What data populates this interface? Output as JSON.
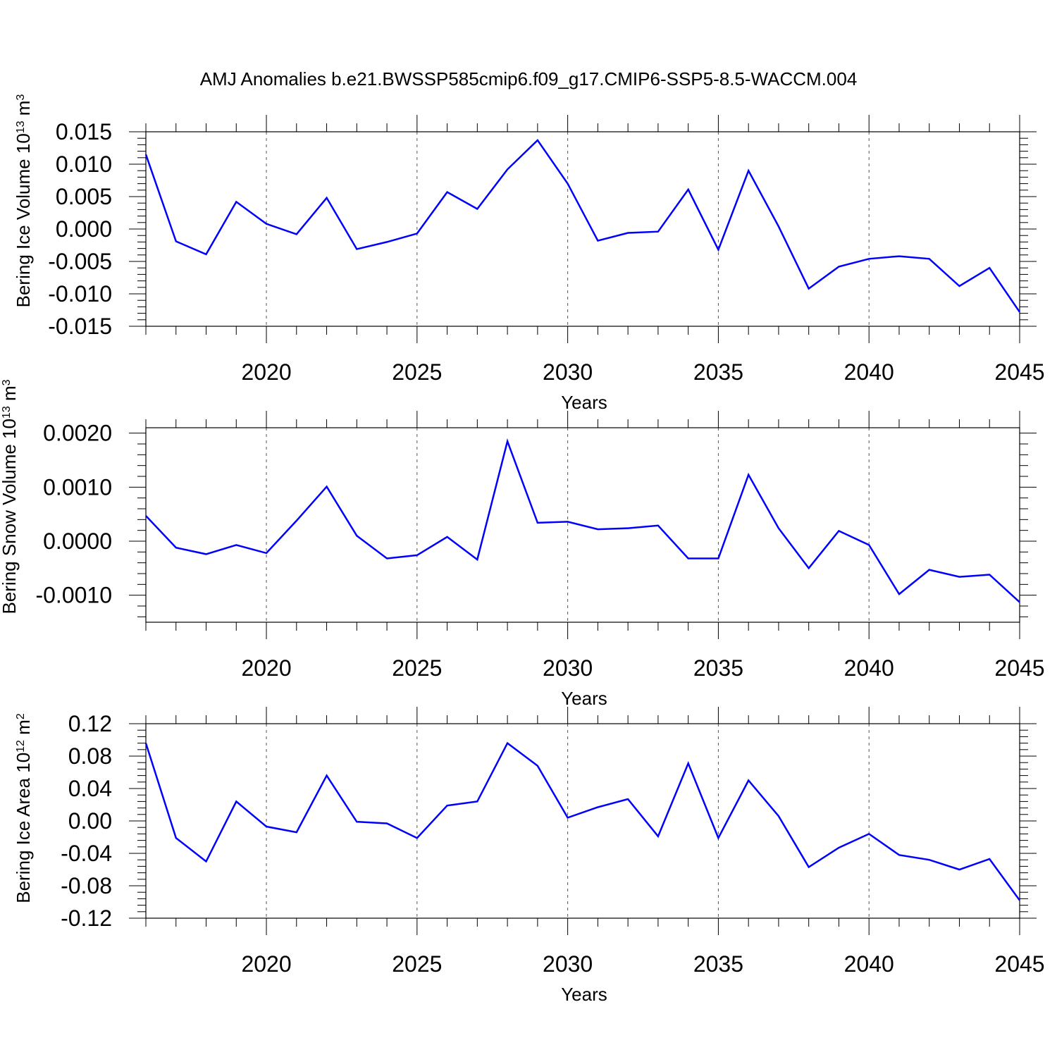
{
  "title": "AMJ Anomalies b.e21.BWSSP585cmip6.f09_g17.CMIP6-SSP5-8.5-WACCM.004",
  "colors": {
    "line": "#0000ff",
    "axis": "#000000",
    "grid": "#555555"
  },
  "chart_data": [
    {
      "type": "line",
      "xlabel": "Years",
      "ylabel": "Bering Ice Volume 10",
      "ylabel_exp": "13",
      "ylabel_unit": " m",
      "ylabel_unit_exp": "3",
      "xlim": [
        2016,
        2045
      ],
      "ylim": [
        -0.015,
        0.015
      ],
      "xticks": [
        2020,
        2025,
        2030,
        2035,
        2040,
        2045
      ],
      "xtick_labels": [
        "2020",
        "2025",
        "2030",
        "2035",
        "2040",
        "2045"
      ],
      "yticks": [
        -0.015,
        -0.01,
        -0.005,
        0.0,
        0.005,
        0.01,
        0.015
      ],
      "ytick_labels": [
        "-0.015",
        "-0.010",
        "-0.005",
        "0.000",
        "0.005",
        "0.010",
        "0.015"
      ],
      "grid": "vertical dashed at major x ticks",
      "x": [
        2016,
        2017,
        2018,
        2019,
        2020,
        2021,
        2022,
        2023,
        2024,
        2025,
        2026,
        2027,
        2028,
        2029,
        2030,
        2031,
        2032,
        2033,
        2034,
        2035,
        2036,
        2037,
        2038,
        2039,
        2040,
        2041,
        2042,
        2043,
        2044,
        2045
      ],
      "y": [
        0.0115,
        -0.0019,
        -0.0039,
        0.0042,
        0.0008,
        -0.0008,
        0.0048,
        -0.0031,
        -0.002,
        -0.0007,
        0.0057,
        0.0031,
        0.0092,
        0.0137,
        0.007,
        -0.0018,
        -0.0006,
        -0.0004,
        0.0061,
        -0.0032,
        0.009,
        0.0004,
        -0.0092,
        -0.0058,
        -0.0046,
        -0.0042,
        -0.0046,
        -0.0088,
        -0.006,
        -0.0128
      ]
    },
    {
      "type": "line",
      "xlabel": "Years",
      "ylabel": "Bering Snow Volume 10",
      "ylabel_exp": "13",
      "ylabel_unit": " m",
      "ylabel_unit_exp": "3",
      "xlim": [
        2016,
        2045
      ],
      "ylim": [
        -0.0015,
        0.0021
      ],
      "xticks": [
        2020,
        2025,
        2030,
        2035,
        2040,
        2045
      ],
      "xtick_labels": [
        "2020",
        "2025",
        "2030",
        "2035",
        "2040",
        "2045"
      ],
      "yticks": [
        -0.001,
        0.0,
        0.001,
        0.002
      ],
      "ytick_labels": [
        "-0.0010",
        "0.0000",
        "0.0010",
        "0.0020"
      ],
      "grid": "vertical dashed at major x ticks",
      "x": [
        2016,
        2017,
        2018,
        2019,
        2020,
        2021,
        2022,
        2023,
        2024,
        2025,
        2026,
        2027,
        2028,
        2029,
        2030,
        2031,
        2032,
        2033,
        2034,
        2035,
        2036,
        2037,
        2038,
        2039,
        2040,
        2041,
        2042,
        2043,
        2044,
        2045
      ],
      "y": [
        0.00047,
        -0.00012,
        -0.00024,
        -7e-05,
        -0.00022,
        0.00038,
        0.00101,
        0.0001,
        -0.00032,
        -0.00026,
        8e-05,
        -0.00034,
        0.00185,
        0.00034,
        0.00036,
        0.00022,
        0.00024,
        0.00029,
        -0.00032,
        -0.00032,
        0.00123,
        0.00024,
        -0.0005,
        0.00019,
        -7e-05,
        -0.00098,
        -0.00053,
        -0.00066,
        -0.00062,
        -0.00113
      ]
    },
    {
      "type": "line",
      "xlabel": "Years",
      "ylabel": "Bering Ice Area 10",
      "ylabel_exp": "12",
      "ylabel_unit": " m",
      "ylabel_unit_exp": "2",
      "xlim": [
        2016,
        2045
      ],
      "ylim": [
        -0.12,
        0.12
      ],
      "xticks": [
        2020,
        2025,
        2030,
        2035,
        2040,
        2045
      ],
      "xtick_labels": [
        "2020",
        "2025",
        "2030",
        "2035",
        "2040",
        "2045"
      ],
      "yticks": [
        -0.12,
        -0.08,
        -0.04,
        0.0,
        0.04,
        0.08,
        0.12
      ],
      "ytick_labels": [
        "-0.12",
        "-0.08",
        "-0.04",
        "0.00",
        "0.04",
        "0.08",
        "0.12"
      ],
      "grid": "vertical dashed at major x ticks",
      "x": [
        2016,
        2017,
        2018,
        2019,
        2020,
        2021,
        2022,
        2023,
        2024,
        2025,
        2026,
        2027,
        2028,
        2029,
        2030,
        2031,
        2032,
        2033,
        2034,
        2035,
        2036,
        2037,
        2038,
        2039,
        2040,
        2041,
        2042,
        2043,
        2044,
        2045
      ],
      "y": [
        0.096,
        -0.021,
        -0.05,
        0.024,
        -0.007,
        -0.014,
        0.056,
        -0.001,
        -0.003,
        -0.021,
        0.019,
        0.024,
        0.096,
        0.068,
        0.004,
        0.017,
        0.027,
        -0.019,
        0.071,
        -0.021,
        0.05,
        0.006,
        -0.057,
        -0.033,
        -0.016,
        -0.042,
        -0.048,
        -0.06,
        -0.047,
        -0.098
      ]
    }
  ]
}
